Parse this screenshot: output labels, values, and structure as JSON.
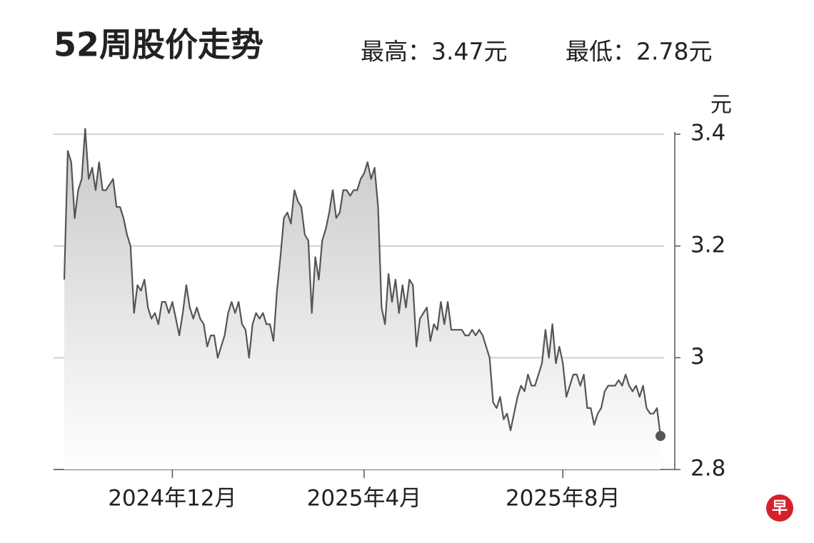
{
  "chart_data": {
    "type": "line",
    "title": "52周股价走势",
    "high_label": "最高：3.47元",
    "low_label": "最低：2.78元",
    "y_label": "元",
    "logo": "早",
    "color": "#555555",
    "ylim": [
      2.8,
      3.45
    ],
    "yticks": [
      2.8,
      3.0,
      3.2,
      3.4
    ],
    "grid": true,
    "categories": [
      null,
      null,
      null,
      null,
      null,
      null,
      null,
      null,
      null,
      null,
      null,
      null,
      null,
      null,
      null,
      null,
      null,
      null,
      null,
      null,
      null,
      null,
      null,
      null,
      null,
      null,
      null,
      null,
      null,
      null,
      null,
      "2024年12月",
      null,
      null,
      null,
      null,
      null,
      null,
      null,
      null,
      null,
      null,
      null,
      null,
      null,
      null,
      null,
      null,
      null,
      null,
      null,
      null,
      null,
      null,
      null,
      null,
      null,
      null,
      null,
      null,
      null,
      null,
      null,
      null,
      null,
      null,
      null,
      null,
      null,
      null,
      null,
      null,
      null,
      null,
      null,
      null,
      null,
      null,
      null,
      null,
      null,
      null,
      null,
      null,
      null,
      null,
      "2025年4月",
      null,
      null,
      null,
      null,
      null,
      null,
      null,
      null,
      null,
      null,
      null,
      null,
      null,
      null,
      null,
      null,
      null,
      null,
      null,
      null,
      null,
      null,
      null,
      null,
      null,
      null,
      null,
      null,
      null,
      null,
      null,
      null,
      null,
      null,
      null,
      null,
      null,
      null,
      null,
      null,
      null,
      null,
      null,
      null,
      null,
      null,
      null,
      null,
      null,
      null,
      null,
      null,
      null,
      null,
      null,
      null,
      "2025年8月",
      null,
      null,
      null,
      null,
      null,
      null,
      null,
      null,
      null,
      null,
      null,
      null,
      null,
      null,
      null,
      null,
      null,
      null,
      null,
      null,
      null,
      null,
      null,
      null,
      null,
      null,
      null,
      null
    ],
    "values": [
      3.14,
      3.37,
      3.35,
      3.25,
      3.3,
      3.32,
      3.41,
      3.32,
      3.34,
      3.3,
      3.35,
      3.3,
      3.3,
      3.31,
      3.32,
      3.27,
      3.27,
      3.25,
      3.22,
      3.2,
      3.08,
      3.13,
      3.12,
      3.14,
      3.09,
      3.07,
      3.08,
      3.06,
      3.1,
      3.1,
      3.08,
      3.1,
      3.07,
      3.04,
      3.08,
      3.13,
      3.09,
      3.07,
      3.09,
      3.07,
      3.06,
      3.02,
      3.04,
      3.04,
      3.0,
      3.02,
      3.04,
      3.08,
      3.1,
      3.08,
      3.1,
      3.06,
      3.05,
      3.0,
      3.06,
      3.08,
      3.07,
      3.08,
      3.06,
      3.06,
      3.03,
      3.12,
      3.18,
      3.25,
      3.26,
      3.24,
      3.3,
      3.28,
      3.27,
      3.22,
      3.21,
      3.08,
      3.18,
      3.14,
      3.21,
      3.23,
      3.26,
      3.3,
      3.25,
      3.26,
      3.3,
      3.3,
      3.29,
      3.3,
      3.3,
      3.32,
      3.33,
      3.35,
      3.32,
      3.34,
      3.27,
      3.09,
      3.06,
      3.15,
      3.1,
      3.14,
      3.08,
      3.13,
      3.09,
      3.14,
      3.13,
      3.02,
      3.07,
      3.08,
      3.09,
      3.03,
      3.06,
      3.05,
      3.1,
      3.06,
      3.1,
      3.05,
      3.05,
      3.05,
      3.05,
      3.04,
      3.04,
      3.05,
      3.04,
      3.05,
      3.04,
      3.02,
      3.0,
      2.92,
      2.91,
      2.93,
      2.89,
      2.9,
      2.87,
      2.9,
      2.93,
      2.95,
      2.94,
      2.97,
      2.95,
      2.95,
      2.97,
      2.99,
      3.05,
      3.0,
      3.06,
      2.99,
      3.02,
      2.99,
      2.93,
      2.95,
      2.97,
      2.97,
      2.95,
      2.97,
      2.91,
      2.91,
      2.88,
      2.9,
      2.91,
      2.94,
      2.95,
      2.95,
      2.95,
      2.96,
      2.95,
      2.97,
      2.95,
      2.94,
      2.95,
      2.93,
      2.95,
      2.91,
      2.9,
      2.9,
      2.91,
      2.86
    ]
  }
}
